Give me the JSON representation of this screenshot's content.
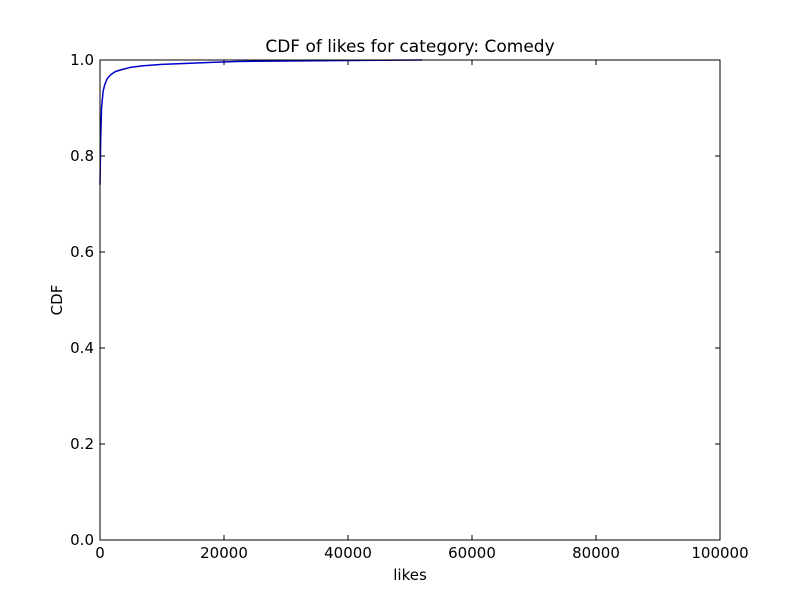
{
  "chart_data": {
    "type": "line",
    "title": "CDF of likes for category: Comedy",
    "xlabel": "likes",
    "ylabel": "CDF",
    "xlim": [
      0,
      100000
    ],
    "ylim": [
      0,
      1.0
    ],
    "grid": false,
    "xticks": [
      0,
      20000,
      40000,
      60000,
      80000,
      100000
    ],
    "xtick_labels": [
      "0",
      "20000",
      "40000",
      "60000",
      "80000",
      "100000"
    ],
    "yticks": [
      0,
      0.2,
      0.4,
      0.6,
      0.8,
      1.0
    ],
    "ytick_labels": [
      "0.0",
      "0.2",
      "0.4",
      "0.6",
      "0.8",
      "1.0"
    ],
    "series": [
      {
        "color": "#0000cc",
        "x": [
          0,
          100,
          250,
          500,
          800,
          1200,
          1800,
          2500,
          3500,
          5000,
          7000,
          10000,
          14000,
          18000,
          22000,
          30000,
          40000,
          52000
        ],
        "y": [
          0.74,
          0.83,
          0.9,
          0.935,
          0.95,
          0.962,
          0.97,
          0.976,
          0.98,
          0.985,
          0.988,
          0.991,
          0.993,
          0.995,
          0.997,
          0.998,
          0.999,
          1.0
        ]
      }
    ]
  }
}
